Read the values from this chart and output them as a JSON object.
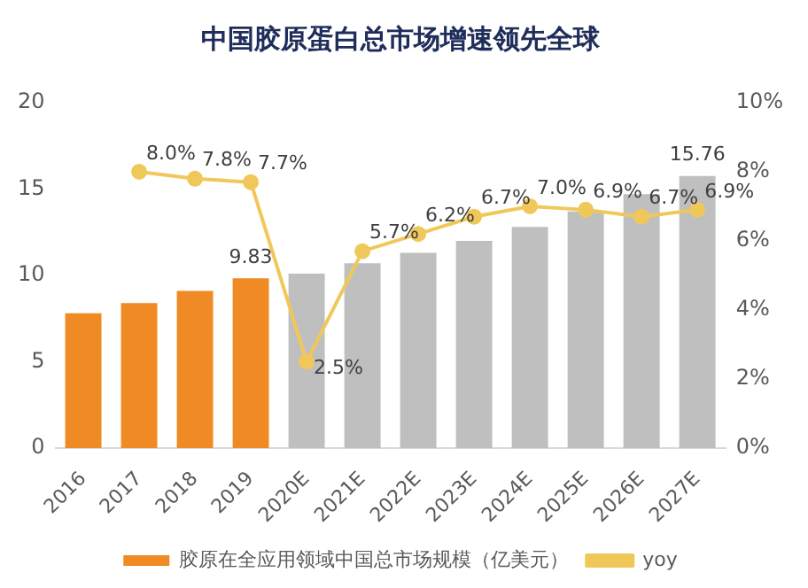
{
  "chart_data": {
    "type": "bar",
    "title": "中国胶原蛋白总市场增速领先全球",
    "categories": [
      "2016",
      "2017",
      "2018",
      "2019",
      "2020E",
      "2021E",
      "2022E",
      "2023E",
      "2024E",
      "2025E",
      "2026E",
      "2027E"
    ],
    "series": [
      {
        "name": "胶原在全应用领域中国总市场规模（亿美元）",
        "color": "#f08a24",
        "colors": [
          "#f08a24",
          "#f08a24",
          "#f08a24",
          "#f08a24",
          "#bfbfbf",
          "#bfbfbf",
          "#bfbfbf",
          "#bfbfbf",
          "#bfbfbf",
          "#bfbfbf",
          "#bfbfbf",
          "#bfbfbf"
        ],
        "values": [
          7.8,
          8.4,
          9.1,
          9.83,
          10.1,
          10.7,
          11.3,
          12.0,
          12.8,
          13.7,
          14.7,
          15.76
        ],
        "value_labels": [
          null,
          null,
          null,
          "9.83",
          null,
          null,
          null,
          null,
          null,
          null,
          null,
          "15.76"
        ]
      },
      {
        "name": "yoy",
        "type": "line",
        "axis": "y2",
        "color": "#f0c85a",
        "marker": "circle",
        "values": [
          null,
          8.0,
          7.8,
          7.7,
          2.5,
          5.7,
          6.2,
          6.7,
          7.0,
          6.9,
          6.7,
          6.9
        ],
        "value_labels": [
          null,
          "8.0%",
          "7.8%",
          "7.7%",
          "2.5%",
          "5.7%",
          "6.2%",
          "6.7%",
          "7.0%",
          "6.9%",
          "6.7%",
          "6.9%"
        ]
      }
    ],
    "ylim": [
      0,
      20
    ],
    "yticks": [
      0,
      5,
      10,
      15,
      20
    ],
    "y2lim": [
      0,
      10
    ],
    "y2ticks": [
      {
        "value": 0,
        "label": "0%"
      },
      {
        "value": 2,
        "label": "2%"
      },
      {
        "value": 4,
        "label": "4%"
      },
      {
        "value": 6,
        "label": "6%"
      },
      {
        "value": 8,
        "label": "8%"
      },
      {
        "value": 10,
        "label": "10%"
      }
    ],
    "grid": false,
    "legend": "bottom"
  }
}
